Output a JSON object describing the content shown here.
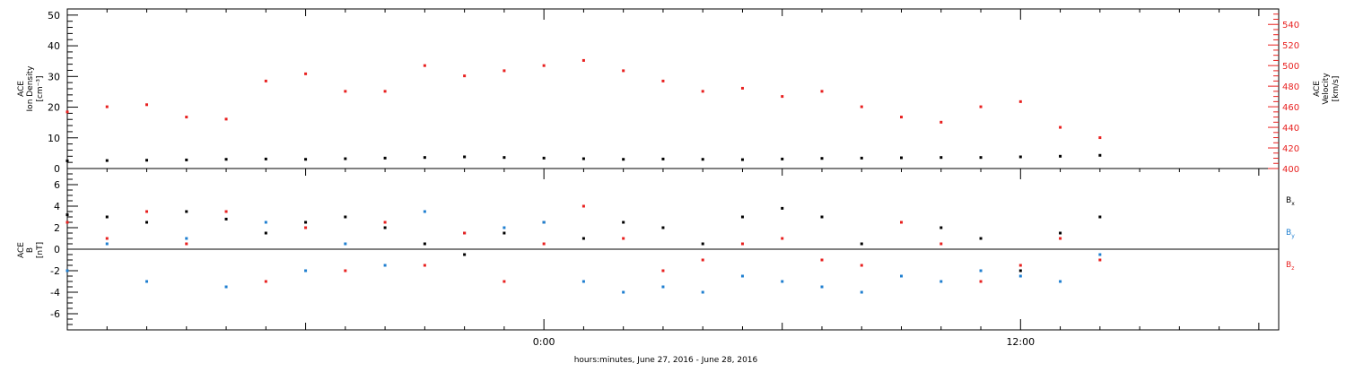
{
  "colors": {
    "black": "#000000",
    "red": "#e8201f",
    "blue": "#1f7fd0"
  },
  "footer": {
    "xlabel": "hours:minutes, June 27, 2016 - June 28, 2016"
  },
  "chart_data": [
    {
      "type": "scatter",
      "panel": "top",
      "ylabel_left": [
        "ACE",
        "Ion Density",
        "[cm⁻³]"
      ],
      "ylabel_right": [
        "ACE",
        "Velocity",
        "[km/s]"
      ],
      "ylim_left": [
        0,
        52
      ],
      "ylim_right": [
        400,
        555
      ],
      "yticks_left": [
        "0",
        "10",
        "20",
        "30",
        "40",
        "50"
      ],
      "yticks_right": [
        "400",
        "420",
        "440",
        "460",
        "480",
        "500",
        "520",
        "540"
      ],
      "x_range_hours": [
        -12,
        18.5
      ],
      "xticks": [
        "0:00",
        "12:00"
      ],
      "series": [
        {
          "color_key": "black",
          "axis": "left",
          "x": [
            -12.0,
            -11.0,
            -10.0,
            -9.0,
            -8.0,
            -7.0,
            -6.0,
            -5.0,
            -4.0,
            -3.0,
            -2.0,
            -1.0,
            0.0,
            1.0,
            2.0,
            3.0,
            4.0,
            5.0,
            6.0,
            7.0,
            8.0,
            9.0,
            10.0,
            11.0,
            12.0,
            13.0,
            14.0
          ],
          "y": [
            2.5,
            2.6,
            2.7,
            2.8,
            3.0,
            3.1,
            3.0,
            3.2,
            3.4,
            3.6,
            3.8,
            3.6,
            3.4,
            3.2,
            3.0,
            3.1,
            3.0,
            2.9,
            3.1,
            3.3,
            3.4,
            3.5,
            3.6,
            3.6,
            3.8,
            4.0,
            4.3
          ]
        },
        {
          "color_key": "red",
          "axis": "right",
          "x": [
            -12.0,
            -11.0,
            -10.0,
            -9.0,
            -8.0,
            -7.0,
            -6.0,
            -5.0,
            -4.0,
            -3.0,
            -2.0,
            -1.0,
            0.0,
            1.0,
            2.0,
            3.0,
            4.0,
            5.0,
            6.0,
            7.0,
            8.0,
            9.0,
            10.0,
            11.0,
            12.0,
            13.0,
            14.0
          ],
          "y": [
            455,
            460,
            462,
            450,
            448,
            485,
            492,
            475,
            475,
            500,
            490,
            495,
            500,
            505,
            495,
            485,
            475,
            478,
            470,
            475,
            460,
            450,
            445,
            460,
            465,
            440,
            430
          ]
        }
      ]
    },
    {
      "type": "scatter",
      "panel": "bottom",
      "ylabel": [
        "ACE",
        "B",
        "[nT]"
      ],
      "ylim": [
        -7.5,
        7.5
      ],
      "yticks": [
        "-6",
        "-4",
        "-2",
        "0",
        "2",
        "4",
        "6"
      ],
      "x_range_hours": [
        -12,
        18.5
      ],
      "xticks": [
        "0:00",
        "12:00"
      ],
      "legend": [
        {
          "label": "B",
          "sub": "x",
          "color_key": "black"
        },
        {
          "label": "B",
          "sub": "y",
          "color_key": "blue"
        },
        {
          "label": "B",
          "sub": "z",
          "color_key": "red"
        }
      ],
      "series": [
        {
          "color_key": "black",
          "x": [
            -12.0,
            -11.0,
            -10.0,
            -9.0,
            -8.0,
            -7.0,
            -6.0,
            -5.0,
            -4.0,
            -3.0,
            -2.0,
            -1.0,
            0.0,
            1.0,
            2.0,
            3.0,
            4.0,
            5.0,
            6.0,
            7.0,
            8.0,
            9.0,
            10.0,
            11.0,
            12.0,
            13.0,
            14.0
          ],
          "y": [
            3.2,
            3.0,
            2.5,
            3.5,
            2.8,
            1.5,
            2.5,
            3.0,
            2.0,
            0.5,
            -0.5,
            1.5,
            2.5,
            1.0,
            2.5,
            2.0,
            0.5,
            3.0,
            3.8,
            3.0,
            0.5,
            2.5,
            2.0,
            1.0,
            -2.0,
            1.5,
            3.0
          ]
        },
        {
          "color_key": "blue",
          "x": [
            -12.0,
            -11.0,
            -10.0,
            -9.0,
            -8.0,
            -7.0,
            -6.0,
            -5.0,
            -4.0,
            -3.0,
            -2.0,
            -1.0,
            0.0,
            1.0,
            2.0,
            3.0,
            4.0,
            5.0,
            6.0,
            7.0,
            8.0,
            9.0,
            10.0,
            11.0,
            12.0,
            13.0,
            14.0
          ],
          "y": [
            -2.0,
            0.5,
            -3.0,
            1.0,
            -3.5,
            2.5,
            -2.0,
            0.5,
            -1.5,
            3.5,
            1.5,
            2.0,
            2.5,
            -3.0,
            -4.0,
            -3.5,
            -4.0,
            -2.5,
            -3.0,
            -3.5,
            -4.0,
            -2.5,
            -3.0,
            -2.0,
            -2.5,
            -3.0,
            -0.5
          ]
        },
        {
          "color_key": "red",
          "x": [
            -12.0,
            -11.0,
            -10.0,
            -9.0,
            -8.0,
            -7.0,
            -6.0,
            -5.0,
            -4.0,
            -3.0,
            -2.0,
            -1.0,
            0.0,
            1.0,
            2.0,
            3.0,
            4.0,
            5.0,
            6.0,
            7.0,
            8.0,
            9.0,
            10.0,
            11.0,
            12.0,
            13.0,
            14.0
          ],
          "y": [
            2.5,
            1.0,
            3.5,
            0.5,
            3.5,
            -3.0,
            2.0,
            -2.0,
            2.5,
            -1.5,
            1.5,
            -3.0,
            0.5,
            4.0,
            1.0,
            -2.0,
            -1.0,
            0.5,
            1.0,
            -1.0,
            -1.5,
            2.5,
            0.5,
            -3.0,
            -1.5,
            1.0,
            -1.0
          ]
        }
      ]
    }
  ]
}
